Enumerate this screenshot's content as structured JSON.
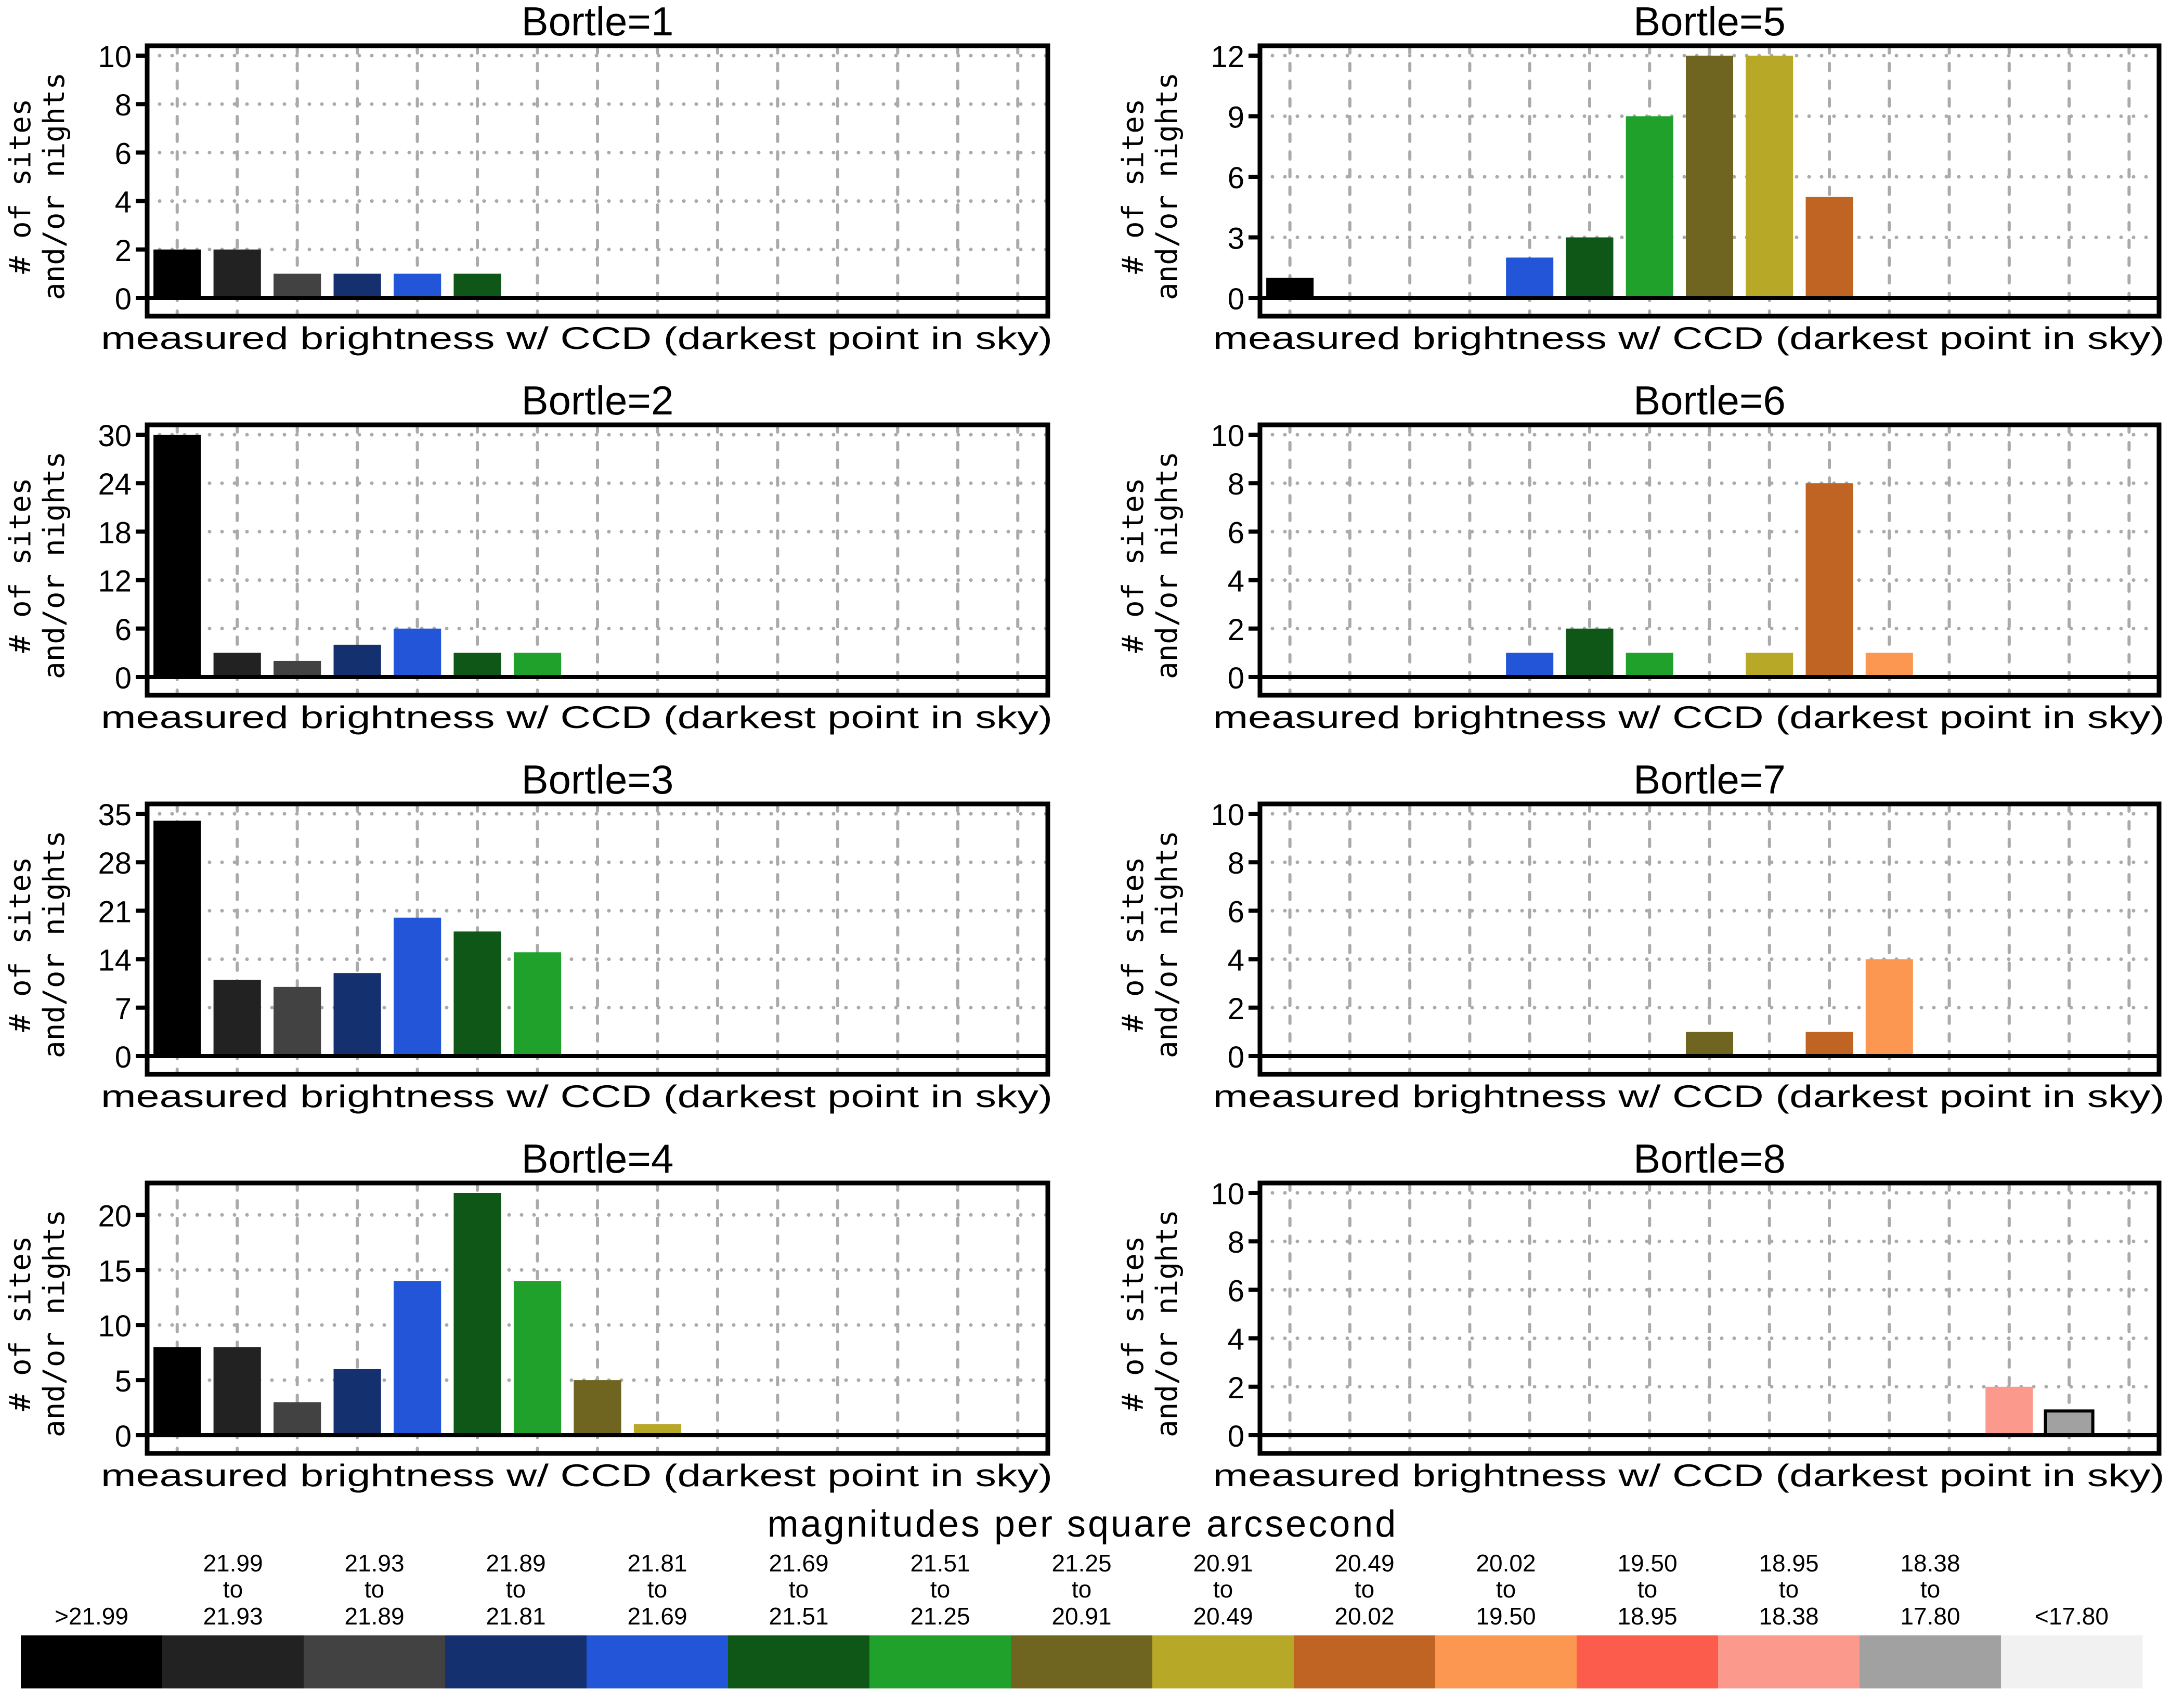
{
  "chart_data": {
    "type": "bar",
    "xlabel": "measured brightness w/ CCD (darkest point in sky)",
    "ylabel_line1": "# of sites",
    "ylabel_line2": "and/or nights",
    "grid": true,
    "categories": [
      ">21.99",
      "21.99 to 21.93",
      "21.93 to 21.89",
      "21.89 to 21.81",
      "21.81 to 21.69",
      "21.69 to 21.51",
      "21.51 to 21.25",
      "21.25 to 20.91",
      "20.91 to 20.49",
      "20.49 to 20.02",
      "20.02 to 19.50",
      "19.50 to 18.95",
      "18.95 to 18.38",
      "18.38 to 17.80",
      "<17.80"
    ],
    "colors": [
      "#000000",
      "#222222",
      "#424242",
      "#15306e",
      "#2255d8",
      "#0f5717",
      "#20a12b",
      "#6f6520",
      "#b8a828",
      "#bf6422",
      "#fc9752",
      "#fc5c4b",
      "#fb9a8c",
      "#a1a1a1",
      "#f1f1f1"
    ],
    "panels": [
      {
        "title": "Bortle=1",
        "ylim": [
          0,
          10
        ],
        "yticks": [
          0,
          2,
          4,
          6,
          8,
          10
        ],
        "values": [
          2,
          2,
          1,
          1,
          1,
          1,
          0,
          0,
          0,
          0,
          0,
          0,
          0,
          0,
          0
        ]
      },
      {
        "title": "Bortle=2",
        "ylim": [
          0,
          30
        ],
        "yticks": [
          0,
          6,
          12,
          18,
          24,
          30
        ],
        "values": [
          30,
          3,
          2,
          4,
          6,
          3,
          3,
          0,
          0,
          0,
          0,
          0,
          0,
          0,
          0
        ]
      },
      {
        "title": "Bortle=3",
        "ylim": [
          0,
          35
        ],
        "yticks": [
          0,
          7,
          14,
          21,
          28,
          35
        ],
        "values": [
          34,
          11,
          10,
          12,
          20,
          18,
          15,
          0,
          0,
          0,
          0,
          0,
          0,
          0,
          0
        ]
      },
      {
        "title": "Bortle=4",
        "ylim": [
          0,
          22
        ],
        "yticks": [
          0,
          5,
          10,
          15,
          20
        ],
        "values": [
          8,
          8,
          3,
          6,
          14,
          22,
          14,
          5,
          1,
          0,
          0,
          0,
          0,
          0,
          0
        ]
      },
      {
        "title": "Bortle=5",
        "ylim": [
          0,
          12
        ],
        "yticks": [
          0,
          3,
          6,
          9,
          12
        ],
        "values": [
          1,
          0,
          0,
          0,
          2,
          3,
          9,
          12,
          12,
          5,
          0,
          0,
          0,
          0,
          0
        ]
      },
      {
        "title": "Bortle=6",
        "ylim": [
          0,
          10
        ],
        "yticks": [
          0,
          2,
          4,
          6,
          8,
          10
        ],
        "values": [
          0,
          0,
          0,
          0,
          1,
          2,
          1,
          0,
          1,
          8,
          1,
          0,
          0,
          0,
          0
        ]
      },
      {
        "title": "Bortle=7",
        "ylim": [
          0,
          10
        ],
        "yticks": [
          0,
          2,
          4,
          6,
          8,
          10
        ],
        "values": [
          0,
          0,
          0,
          0,
          0,
          0,
          0,
          1,
          0,
          1,
          4,
          0,
          0,
          0,
          0
        ]
      },
      {
        "title": "Bortle=8",
        "ylim": [
          0,
          10
        ],
        "yticks": [
          0,
          2,
          4,
          6,
          8,
          10
        ],
        "values": [
          0,
          0,
          0,
          0,
          0,
          0,
          0,
          0,
          0,
          0,
          0,
          0,
          2,
          1,
          0
        ]
      }
    ],
    "legend": {
      "title": "magnitudes per square arcsecond",
      "entries": [
        {
          "top": "",
          "mid": "",
          "bottom": ">21.99"
        },
        {
          "top": "21.99",
          "mid": "to",
          "bottom": "21.93"
        },
        {
          "top": "21.93",
          "mid": "to",
          "bottom": "21.89"
        },
        {
          "top": "21.89",
          "mid": "to",
          "bottom": "21.81"
        },
        {
          "top": "21.81",
          "mid": "to",
          "bottom": "21.69"
        },
        {
          "top": "21.69",
          "mid": "to",
          "bottom": "21.51"
        },
        {
          "top": "21.51",
          "mid": "to",
          "bottom": "21.25"
        },
        {
          "top": "21.25",
          "mid": "to",
          "bottom": "20.91"
        },
        {
          "top": "20.91",
          "mid": "to",
          "bottom": "20.49"
        },
        {
          "top": "20.49",
          "mid": "to",
          "bottom": "20.02"
        },
        {
          "top": "20.02",
          "mid": "to",
          "bottom": "19.50"
        },
        {
          "top": "19.50",
          "mid": "to",
          "bottom": "18.95"
        },
        {
          "top": "18.95",
          "mid": "to",
          "bottom": "18.38"
        },
        {
          "top": "18.38",
          "mid": "to",
          "bottom": "17.80"
        },
        {
          "top": "",
          "mid": "",
          "bottom": "<17.80"
        }
      ],
      "placement": "bottom"
    }
  }
}
